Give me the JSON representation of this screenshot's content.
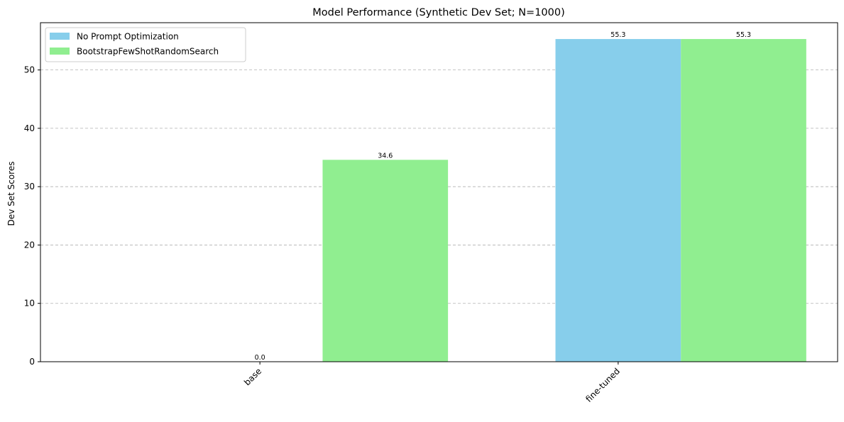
{
  "chart_data": {
    "type": "bar",
    "title": "Model Performance (Synthetic Dev Set; N=1000)",
    "xlabel": "",
    "ylabel": "Dev Set Scores",
    "categories": [
      "base",
      "fine-tuned"
    ],
    "series": [
      {
        "name": "No Prompt Optimization",
        "values": [
          0.0,
          55.3
        ],
        "color": "#87CEEB"
      },
      {
        "name": "BootstrapFewShotRandomSearch",
        "values": [
          34.6,
          55.3
        ],
        "color": "#90EE90"
      }
    ],
    "value_labels": [
      "0.0",
      "55.3",
      "34.6",
      "55.3"
    ],
    "ylim": [
      0,
      58.1
    ],
    "yticks": [
      0,
      10,
      20,
      30,
      40,
      50
    ],
    "grid": {
      "y": true,
      "x": false,
      "style": "dashed"
    },
    "legend_position": "top-left"
  }
}
